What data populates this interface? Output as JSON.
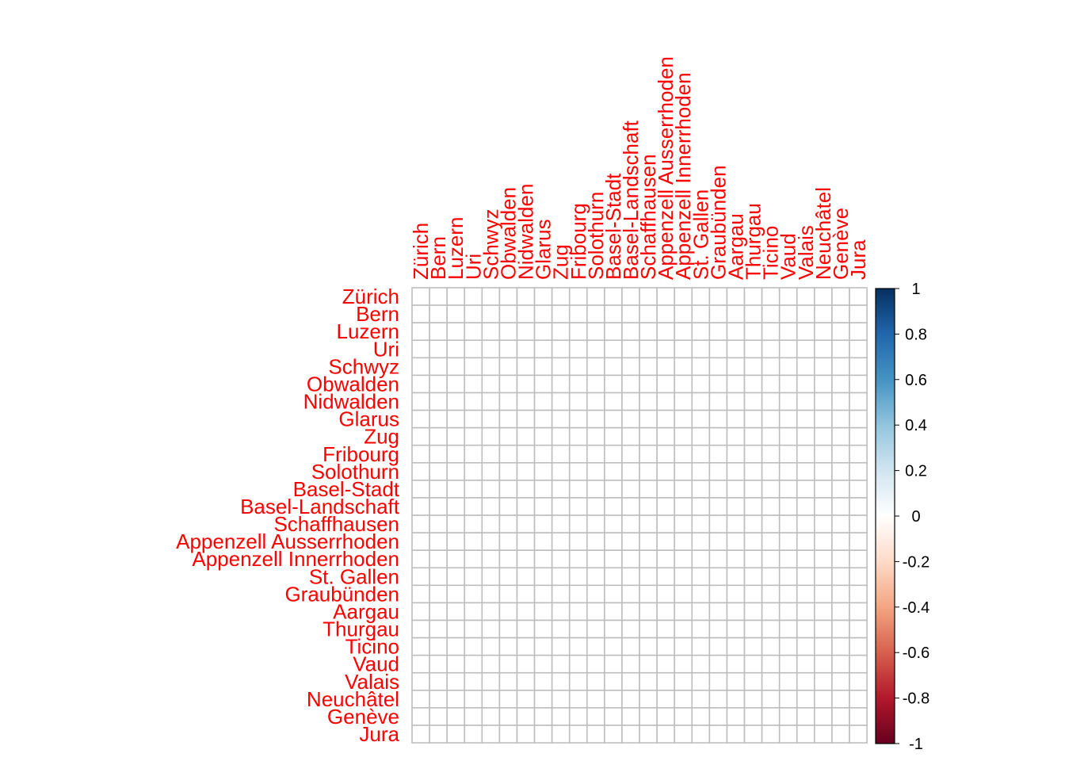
{
  "chart_data": {
    "type": "heatmap",
    "variables": [
      "Zürich",
      "Bern",
      "Luzern",
      "Uri",
      "Schwyz",
      "Obwalden",
      "Nidwalden",
      "Glarus",
      "Zug",
      "Fribourg",
      "Solothurn",
      "Basel-Stadt",
      "Basel-Landschaft",
      "Schaffhausen",
      "Appenzell Ausserrhoden",
      "Appenzell Innerrhoden",
      "St. Gallen",
      "Graubünden",
      "Aargau",
      "Thurgau",
      "Ticino",
      "Vaud",
      "Valais",
      "Neuchâtel",
      "Genève",
      "Jura"
    ],
    "values_note": "all correlation values approximately 0; cells render as near-white squares",
    "value_range": [
      -1,
      1
    ],
    "colorbar": {
      "ticks": [
        "1",
        "0.8",
        "0.6",
        "0.4",
        "0.2",
        "0",
        "-0.2",
        "-0.4",
        "-0.6",
        "-0.8",
        "-1"
      ],
      "stops": [
        "#053061",
        "#2166ac",
        "#4393c3",
        "#92c5de",
        "#d1e5f0",
        "#ffffff",
        "#fddbc7",
        "#f4a582",
        "#d6604d",
        "#b2182b",
        "#67001f"
      ]
    },
    "label_color": "#ff0000",
    "grid_color": "#bebebe"
  }
}
